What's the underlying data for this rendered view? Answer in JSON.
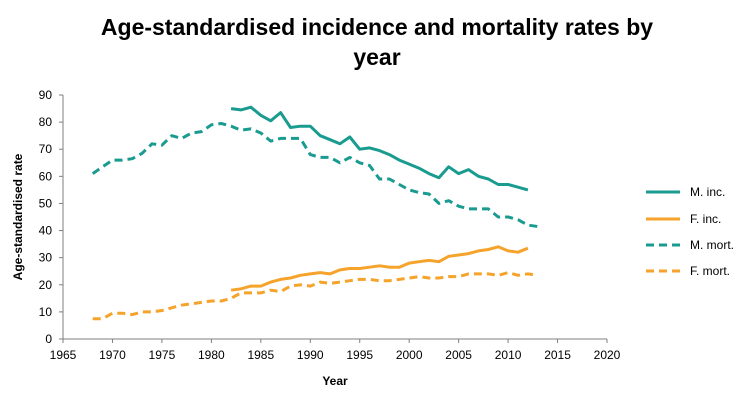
{
  "chart_data": {
    "type": "line",
    "title_line1": "Age-standardised incidence and mortality rates by",
    "title_line2": "year",
    "xlabel": "Year",
    "ylabel": "Age-standardised rate",
    "xlim": [
      1965,
      2020
    ],
    "ylim": [
      0,
      90
    ],
    "xticks": [
      1965,
      1970,
      1975,
      1980,
      1985,
      1990,
      1995,
      2000,
      2005,
      2010,
      2015,
      2020
    ],
    "yticks": [
      0,
      10,
      20,
      30,
      40,
      50,
      60,
      70,
      80,
      90
    ],
    "grid": false,
    "legend_position": "right",
    "series": [
      {
        "name": "M. inc.",
        "color": "#1a9b8f",
        "dash": "solid",
        "x": [
          1982,
          1983,
          1984,
          1985,
          1986,
          1987,
          1988,
          1989,
          1990,
          1991,
          1992,
          1993,
          1994,
          1995,
          1996,
          1997,
          1998,
          1999,
          2000,
          2001,
          2002,
          2003,
          2004,
          2005,
          2006,
          2007,
          2008,
          2009,
          2010,
          2011,
          2012
        ],
        "y": [
          85,
          84.5,
          85.5,
          82.5,
          80.5,
          83.5,
          78,
          78.5,
          78.5,
          75,
          73.5,
          72,
          74.5,
          70,
          70.5,
          69.5,
          68,
          66,
          64.5,
          63,
          61,
          59.5,
          63.5,
          61,
          62.5,
          60,
          59,
          57,
          57,
          56,
          55
        ]
      },
      {
        "name": "F. inc.",
        "color": "#f5a32a",
        "dash": "solid",
        "x": [
          1982,
          1983,
          1984,
          1985,
          1986,
          1987,
          1988,
          1989,
          1990,
          1991,
          1992,
          1993,
          1994,
          1995,
          1996,
          1997,
          1998,
          1999,
          2000,
          2001,
          2002,
          2003,
          2004,
          2005,
          2006,
          2007,
          2008,
          2009,
          2010,
          2011,
          2012
        ],
        "y": [
          18,
          18.5,
          19.5,
          19.5,
          21,
          22,
          22.5,
          23.5,
          24,
          24.5,
          24,
          25.5,
          26,
          26,
          26.5,
          27,
          26.5,
          26.5,
          28,
          28.5,
          29,
          28.5,
          30.5,
          31,
          31.5,
          32.5,
          33,
          34,
          32.5,
          32,
          33.5
        ]
      },
      {
        "name": "M. mort.",
        "color": "#1a9b8f",
        "dash": "dashed",
        "x": [
          1968,
          1969,
          1970,
          1971,
          1972,
          1973,
          1974,
          1975,
          1976,
          1977,
          1978,
          1979,
          1980,
          1981,
          1982,
          1983,
          1984,
          1985,
          1986,
          1987,
          1988,
          1989,
          1990,
          1991,
          1992,
          1993,
          1994,
          1995,
          1996,
          1997,
          1998,
          1999,
          2000,
          2001,
          2002,
          2003,
          2004,
          2005,
          2006,
          2007,
          2008,
          2009,
          2010,
          2011,
          2012,
          2013
        ],
        "y": [
          61,
          63.5,
          66,
          66,
          66.5,
          68.5,
          72,
          71.5,
          75,
          74,
          76,
          76.5,
          79,
          79.5,
          78.5,
          77,
          77.5,
          76,
          73,
          74,
          74,
          74,
          68,
          67,
          67,
          65,
          67,
          65,
          64,
          59,
          59,
          57,
          55,
          54,
          53.5,
          50,
          51,
          49,
          48,
          48,
          48,
          45,
          45,
          44,
          42,
          41.5
        ]
      },
      {
        "name": "F. mort.",
        "color": "#f5a32a",
        "dash": "dashed",
        "x": [
          1968,
          1969,
          1970,
          1971,
          1972,
          1973,
          1974,
          1975,
          1976,
          1977,
          1978,
          1979,
          1980,
          1981,
          1982,
          1983,
          1984,
          1985,
          1986,
          1987,
          1988,
          1989,
          1990,
          1991,
          1992,
          1993,
          1994,
          1995,
          1996,
          1997,
          1998,
          1999,
          2000,
          2001,
          2002,
          2003,
          2004,
          2005,
          2006,
          2007,
          2008,
          2009,
          2010,
          2011,
          2012,
          2013
        ],
        "y": [
          7.5,
          7.5,
          9.5,
          9.5,
          9,
          10,
          10,
          10.5,
          11.5,
          12.5,
          13,
          13.5,
          14,
          14,
          15,
          17,
          17,
          17,
          18,
          17.5,
          19.5,
          20,
          19.5,
          21,
          20.5,
          21,
          21.5,
          22,
          22,
          21.5,
          21.5,
          22,
          22.5,
          23,
          22.5,
          22.5,
          23,
          23,
          24,
          24,
          24,
          23.5,
          24.5,
          23.5,
          24,
          23.5
        ]
      }
    ]
  }
}
